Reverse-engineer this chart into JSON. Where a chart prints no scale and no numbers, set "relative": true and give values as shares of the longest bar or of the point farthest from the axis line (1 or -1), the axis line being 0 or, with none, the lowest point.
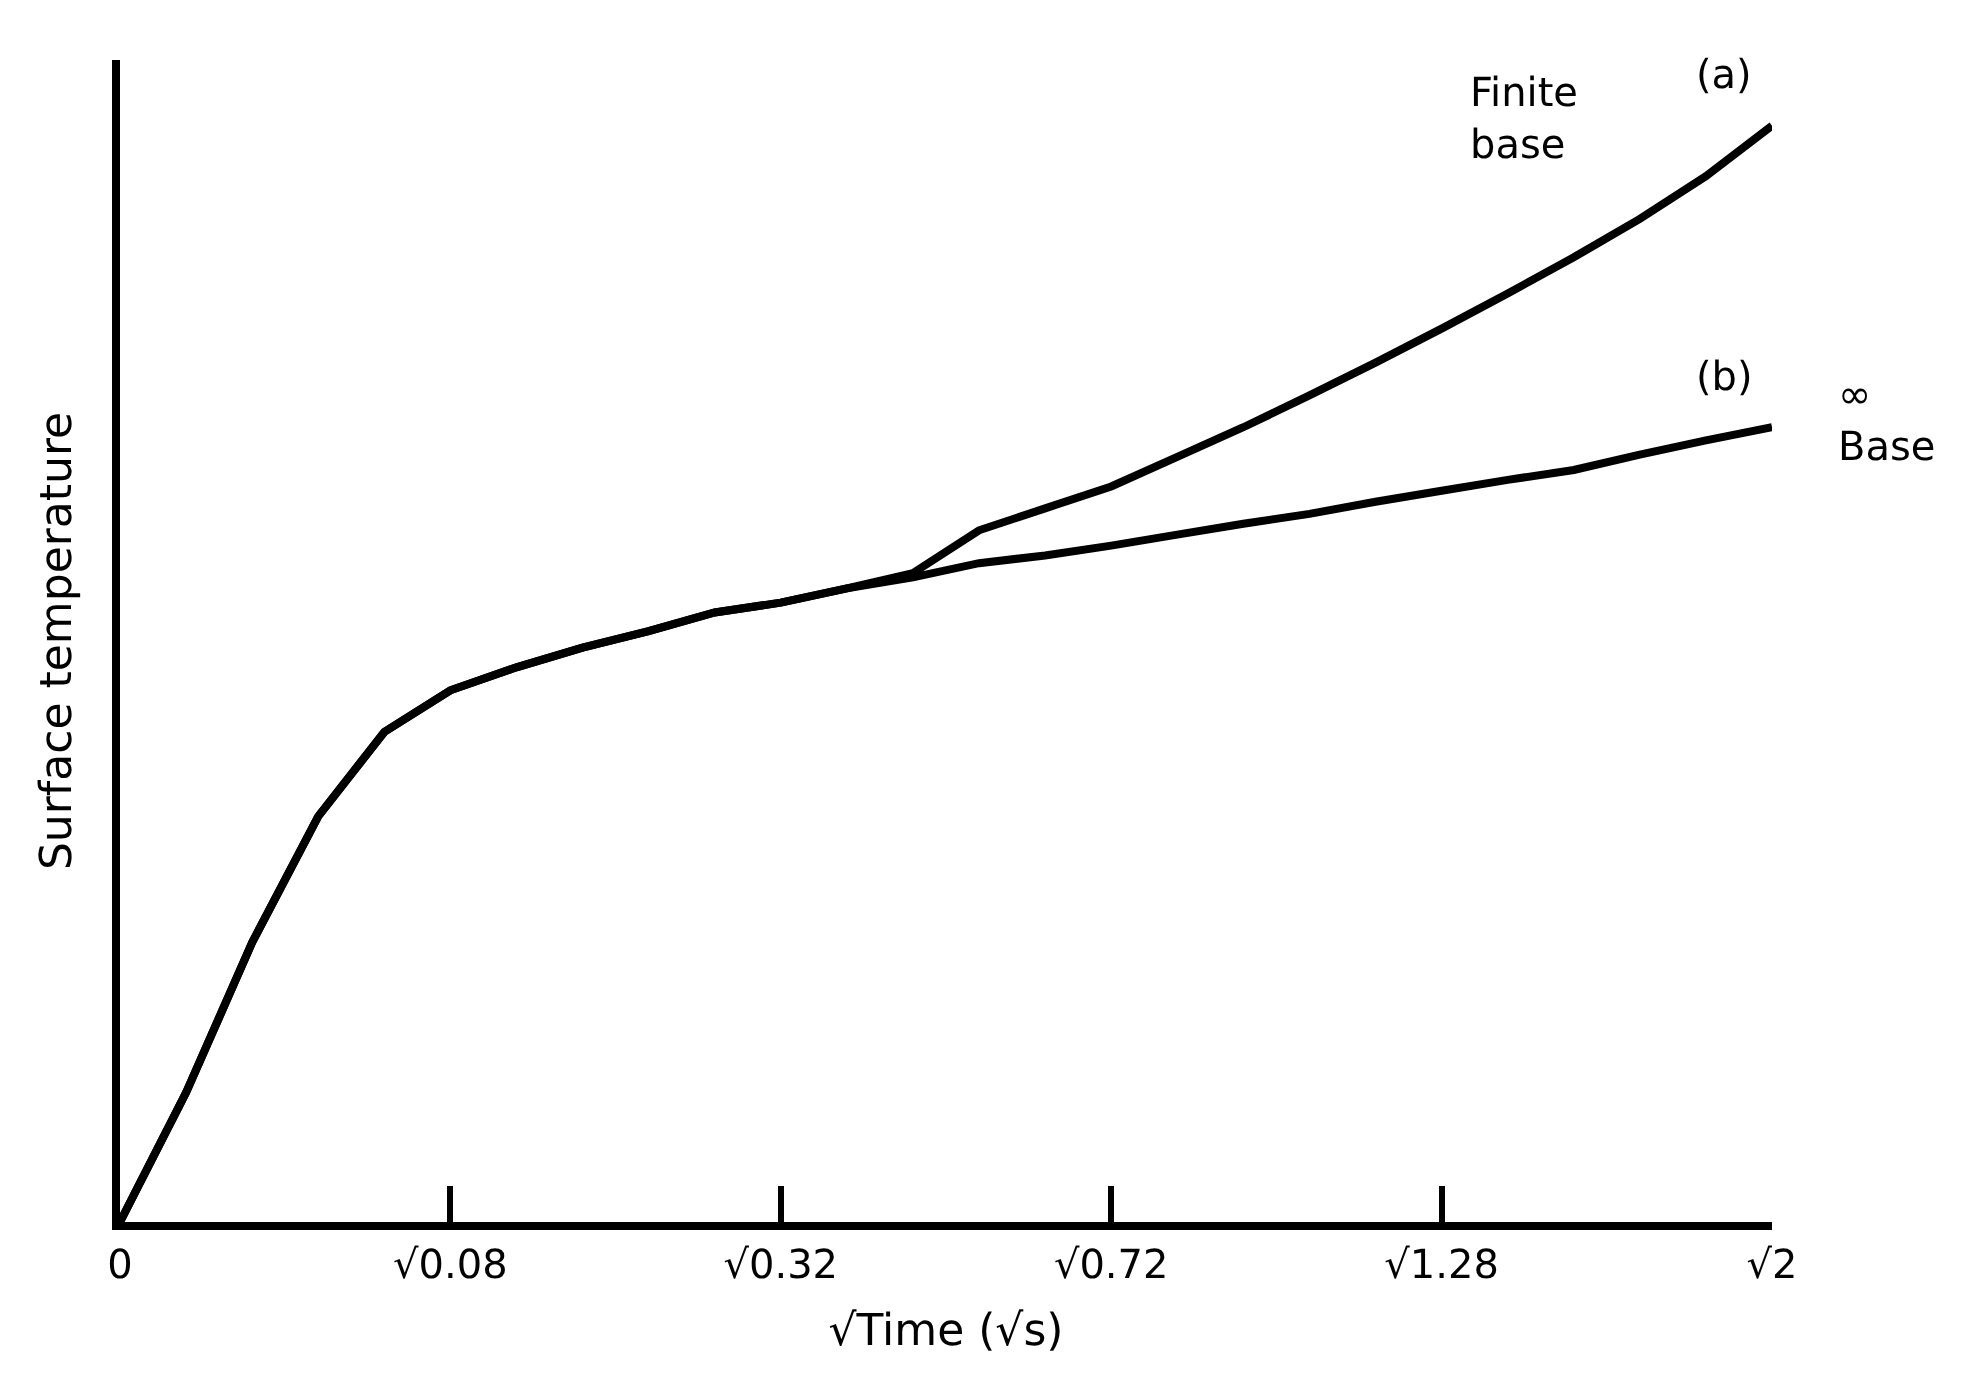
{
  "chart_data": {
    "type": "line",
    "relative": true,
    "xlabel": "√Time (√s)",
    "ylabel": "Surface temperature",
    "tick_labels": "x",
    "legend": false,
    "marker": "none",
    "line_style": "solid",
    "categories": [
      "0",
      null,
      null,
      null,
      null,
      "√0.08",
      null,
      null,
      null,
      null,
      "√0.32",
      null,
      null,
      null,
      null,
      "√0.72",
      null,
      null,
      null,
      null,
      "√1.28",
      null,
      null,
      null,
      null,
      "√2"
    ],
    "series": [
      {
        "name": "(a)",
        "color": "#000000",
        "values": [
          0,
          0.118,
          0.255,
          0.37,
          0.447,
          0.485,
          0.506,
          0.524,
          0.539,
          0.556,
          0.565,
          0.578,
          0.592,
          0.631,
          0.651,
          0.671,
          0.698,
          0.725,
          0.754,
          0.784,
          0.815,
          0.847,
          0.88,
          0.915,
          0.954,
          1
        ]
      },
      {
        "name": "(b)",
        "color": "#000000",
        "values": [
          0,
          0.118,
          0.255,
          0.37,
          0.447,
          0.485,
          0.506,
          0.524,
          0.539,
          0.556,
          0.565,
          0.578,
          0.588,
          0.601,
          0.608,
          0.617,
          0.627,
          0.637,
          0.646,
          0.657,
          0.667,
          0.677,
          0.686,
          0.7,
          0.713,
          0.725
        ]
      }
    ],
    "annotations": [
      "Finite\nbase",
      "∞\nBase"
    ]
  }
}
